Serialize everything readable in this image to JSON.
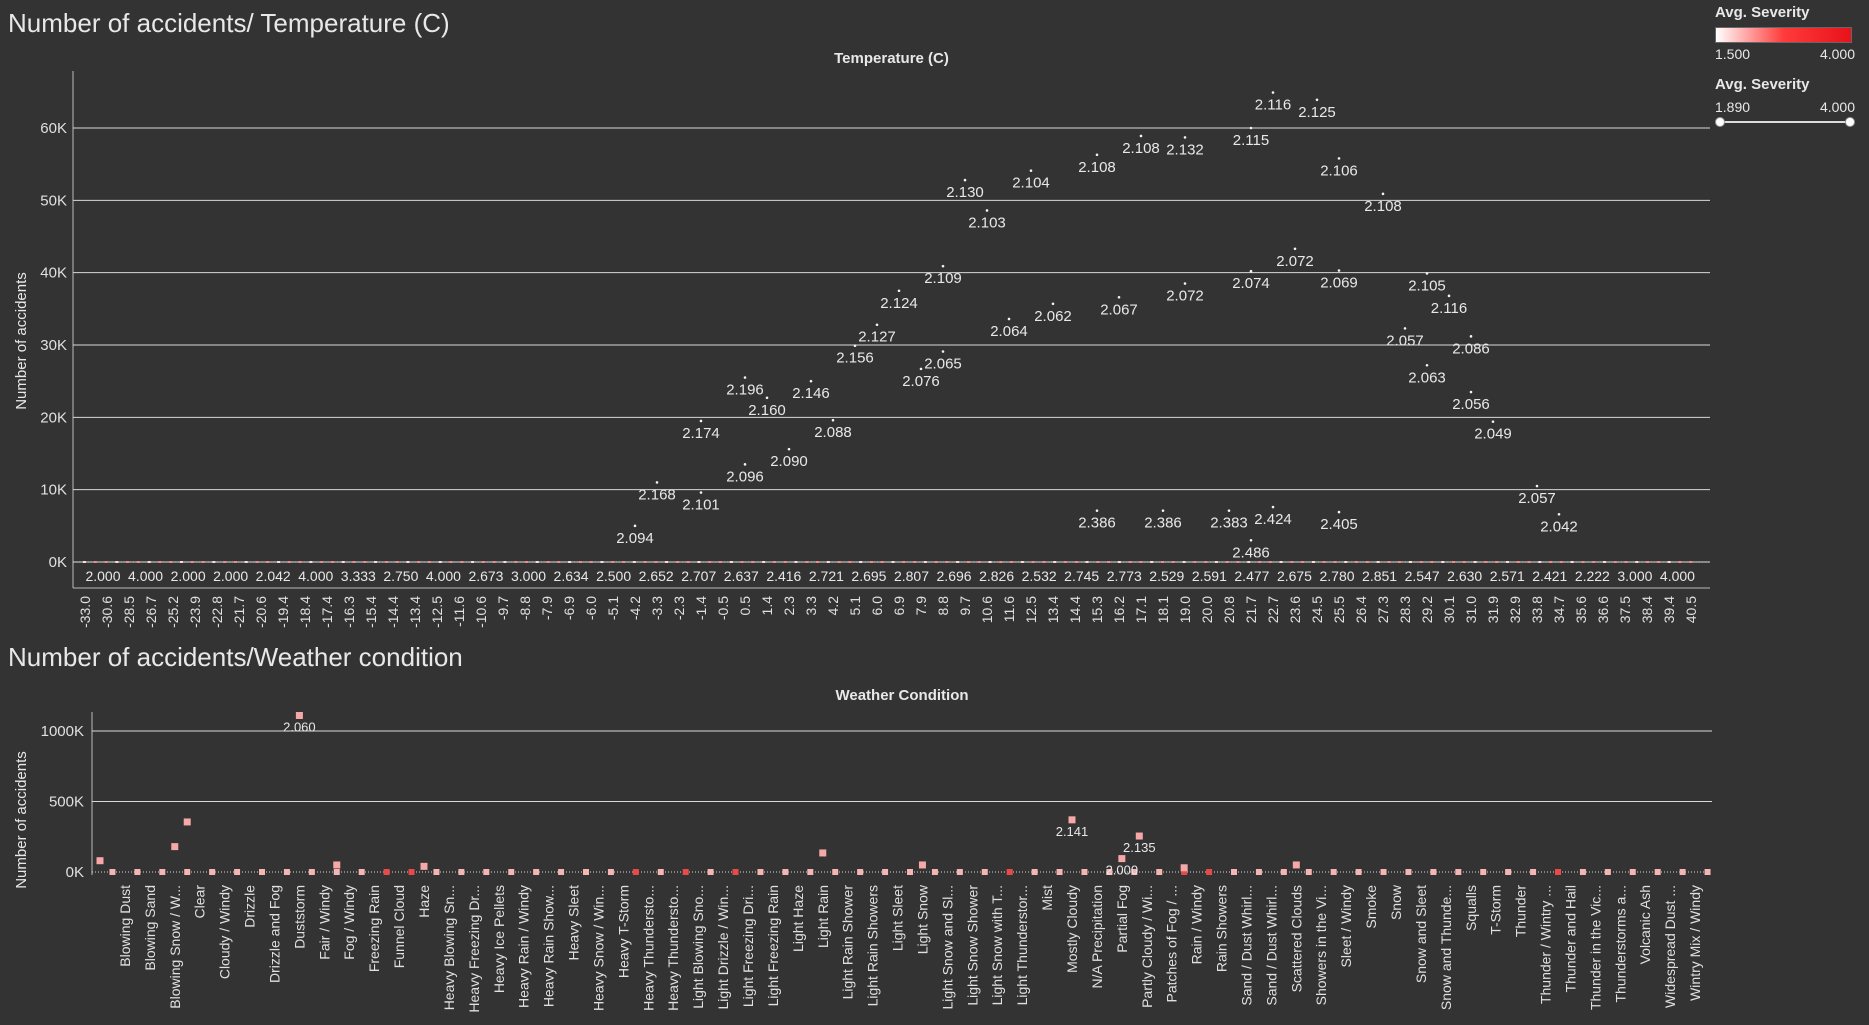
{
  "dashboard": {
    "chart1_title": "Number of accidents/ Temperature (C)",
    "chart2_title": "Number of accidents/Weather condition"
  },
  "legend": {
    "color_title": "Avg. Severity",
    "color_min": "1.500",
    "color_max": "4.000",
    "filter_title": "Avg. Severity",
    "filter_min": "1.890",
    "filter_max": "4.000",
    "colors": {
      "low": "#ffffff",
      "mid": "#ff3b3b",
      "high": "#e8121a"
    }
  },
  "chart_data": [
    {
      "type": "scatter",
      "title": "Temperature (C)",
      "xlabel": "Temperature (C)",
      "ylabel": "Number of accidents",
      "ylim": [
        0,
        65000
      ],
      "y_ticks": [
        "0K",
        "10K",
        "20K",
        "30K",
        "40K",
        "50K",
        "60K"
      ],
      "x_tick_labels": [
        "-33.0",
        "-30.6",
        "-28.5",
        "-26.7",
        "-25.2",
        "-23.9",
        "-22.8",
        "-21.7",
        "-20.6",
        "-19.4",
        "-18.4",
        "-17.4",
        "-16.3",
        "-15.4",
        "-14.4",
        "-13.4",
        "-12.5",
        "-11.6",
        "-10.6",
        "-9.7",
        "-8.8",
        "-7.9",
        "-6.9",
        "-6.0",
        "-5.1",
        "-4.2",
        "-3.3",
        "-2.3",
        "-1.4",
        "-0.5",
        "0.5",
        "1.4",
        "2.3",
        "3.3",
        "4.2",
        "5.1",
        "6.0",
        "6.9",
        "7.9",
        "8.8",
        "9.7",
        "10.6",
        "11.6",
        "12.5",
        "13.4",
        "14.4",
        "15.3",
        "16.2",
        "17.1",
        "18.1",
        "19.0",
        "20.0",
        "20.8",
        "21.7",
        "22.7",
        "23.6",
        "24.5",
        "25.5",
        "26.4",
        "27.3",
        "28.3",
        "29.2",
        "30.1",
        "31.0",
        "31.9",
        "32.9",
        "33.8",
        "34.7",
        "35.6",
        "36.6",
        "37.5",
        "38.4",
        "39.4",
        "40.5"
      ],
      "baseline_labels": [
        "2.000",
        "4.000",
        "2.000",
        "2.000",
        "2.042",
        "4.000",
        "3.333",
        "2.750",
        "4.000",
        "2.673",
        "3.000",
        "2.634",
        "2.500",
        "2.652",
        "2.707",
        "2.637",
        "2.416",
        "2.721",
        "2.695",
        "2.807",
        "2.696",
        "2.826",
        "2.532",
        "2.745",
        "2.773",
        "2.529",
        "2.591",
        "2.477",
        "2.675",
        "2.780",
        "2.851",
        "2.547",
        "2.630",
        "2.571",
        "2.421",
        "2.222",
        "3.000",
        "4.000"
      ],
      "points": [
        {
          "x": -4.2,
          "y": 5000,
          "label": "2.094"
        },
        {
          "x": -3.3,
          "y": 11000,
          "label": "2.168"
        },
        {
          "x": -1.4,
          "y": 9600,
          "label": "2.101"
        },
        {
          "x": -1.4,
          "y": 19500,
          "label": "2.174"
        },
        {
          "x": 0.5,
          "y": 25500,
          "label": "2.196"
        },
        {
          "x": 0.5,
          "y": 13500,
          "label": "2.096"
        },
        {
          "x": 1.4,
          "y": 22700,
          "label": "2.160"
        },
        {
          "x": 2.3,
          "y": 15600,
          "label": "2.090"
        },
        {
          "x": 3.3,
          "y": 25000,
          "label": "2.146"
        },
        {
          "x": 4.2,
          "y": 19600,
          "label": "2.088"
        },
        {
          "x": 5.1,
          "y": 29900,
          "label": "2.156"
        },
        {
          "x": 6.0,
          "y": 32800,
          "label": "2.127"
        },
        {
          "x": 6.9,
          "y": 37500,
          "label": "2.124"
        },
        {
          "x": 7.9,
          "y": 26700,
          "label": "2.076"
        },
        {
          "x": 8.8,
          "y": 40900,
          "label": "2.109"
        },
        {
          "x": 8.8,
          "y": 29100,
          "label": "2.065"
        },
        {
          "x": 9.7,
          "y": 52800,
          "label": "2.130"
        },
        {
          "x": 10.6,
          "y": 48600,
          "label": "2.103"
        },
        {
          "x": 11.6,
          "y": 33600,
          "label": "2.064"
        },
        {
          "x": 12.5,
          "y": 54100,
          "label": "2.104"
        },
        {
          "x": 13.4,
          "y": 35700,
          "label": "2.062"
        },
        {
          "x": 15.3,
          "y": 56300,
          "label": "2.108"
        },
        {
          "x": 16.2,
          "y": 36600,
          "label": "2.067"
        },
        {
          "x": 17.1,
          "y": 58900,
          "label": "2.108"
        },
        {
          "x": 19.0,
          "y": 38500,
          "label": "2.072"
        },
        {
          "x": 19.0,
          "y": 58700,
          "label": "2.132"
        },
        {
          "x": 21.7,
          "y": 40200,
          "label": "2.074"
        },
        {
          "x": 21.7,
          "y": 60000,
          "label": "2.115"
        },
        {
          "x": 22.7,
          "y": 64900,
          "label": "2.116"
        },
        {
          "x": 23.6,
          "y": 43300,
          "label": "2.072"
        },
        {
          "x": 24.5,
          "y": 63900,
          "label": "2.125"
        },
        {
          "x": 25.5,
          "y": 40300,
          "label": "2.069"
        },
        {
          "x": 25.5,
          "y": 55800,
          "label": "2.106"
        },
        {
          "x": 27.3,
          "y": 50900,
          "label": "2.108"
        },
        {
          "x": 28.3,
          "y": 32300,
          "label": "2.057"
        },
        {
          "x": 29.2,
          "y": 39900,
          "label": "2.105"
        },
        {
          "x": 29.2,
          "y": 27200,
          "label": "2.063"
        },
        {
          "x": 30.1,
          "y": 36800,
          "label": "2.116"
        },
        {
          "x": 31.0,
          "y": 31200,
          "label": "2.086"
        },
        {
          "x": 31.0,
          "y": 23500,
          "label": "2.056"
        },
        {
          "x": 31.9,
          "y": 19400,
          "label": "2.049"
        },
        {
          "x": 33.8,
          "y": 10500,
          "label": "2.057"
        },
        {
          "x": 34.7,
          "y": 6600,
          "label": "2.042"
        },
        {
          "x": 15.3,
          "y": 7100,
          "label": "2.386"
        },
        {
          "x": 18.1,
          "y": 7100,
          "label": "2.386"
        },
        {
          "x": 20.8,
          "y": 7100,
          "label": "2.383"
        },
        {
          "x": 21.7,
          "y": 3000,
          "label": "2.486"
        },
        {
          "x": 22.7,
          "y": 7600,
          "label": "2.424"
        },
        {
          "x": 25.5,
          "y": 6900,
          "label": "2.405"
        }
      ]
    },
    {
      "type": "scatter",
      "title": "Weather Condition",
      "xlabel": "Weather Condition",
      "ylabel": "Number of accidents",
      "ylim": [
        0,
        1200000
      ],
      "y_ticks": [
        "0K",
        "500K",
        "1000K"
      ],
      "categories": [
        "Blowing Dust",
        "Blowing Sand",
        "Blowing Snow / W...",
        "Clear",
        "Cloudy / Windy",
        "Drizzle",
        "Drizzle and Fog",
        "Duststorm",
        "Fair / Windy",
        "Fog / Windy",
        "Freezing Rain",
        "Funnel Cloud",
        "Haze",
        "Heavy Blowing Sn...",
        "Heavy Freezing Dr...",
        "Heavy Ice Pellets",
        "Heavy Rain / Windy",
        "Heavy Rain Show...",
        "Heavy Sleet",
        "Heavy Snow / Win...",
        "Heavy T-Storm",
        "Heavy Thundersto...",
        "Heavy Thundersto...",
        "Light Blowing Sno...",
        "Light Drizzle / Win...",
        "Light Freezing Dri...",
        "Light Freezing Rain",
        "Light Haze",
        "Light Rain",
        "Light Rain Shower",
        "Light Rain Showers",
        "Light Sleet",
        "Light Snow",
        "Light Snow and Sl...",
        "Light Snow Shower",
        "Light Snow with T...",
        "Light Thunderstor...",
        "Mist",
        "Mostly Cloudy",
        "N/A Precipitation",
        "Partial Fog",
        "Partly Cloudy / Wi...",
        "Patches of Fog / ...",
        "Rain / Windy",
        "Rain Showers",
        "Sand / Dust Whirl...",
        "Sand / Dust Whirl...",
        "Scattered Clouds",
        "Showers in the Vi...",
        "Sleet / Windy",
        "Smoke",
        "Snow",
        "Snow and Sleet",
        "Snow and Thunde...",
        "Squalls",
        "T-Storm",
        "Thunder",
        "Thunder / Wintry ...",
        "Thunder and Hail",
        "Thunder in the Vic...",
        "Thunderstorms a...",
        "Volcanic Ash",
        "Widespread Dust ...",
        "Wintry Mix / Windy"
      ],
      "points": [
        {
          "x": -1,
          "y": 80000
        },
        {
          "x": 2,
          "y": 180000
        },
        {
          "x": 2.5,
          "y": 355000
        },
        {
          "x": 7,
          "y": 1110000,
          "label": "2.060"
        },
        {
          "x": 8.5,
          "y": 50000
        },
        {
          "x": 12,
          "y": 40000
        },
        {
          "x": 28,
          "y": 135000
        },
        {
          "x": 32,
          "y": 50000
        },
        {
          "x": 38,
          "y": 370000,
          "label": "2.141"
        },
        {
          "x": 40,
          "y": 95000,
          "label": "2.000"
        },
        {
          "x": 40.7,
          "y": 255000,
          "label": "2.135"
        },
        {
          "x": 42.5,
          "y": 30000
        },
        {
          "x": 47,
          "y": 50000
        }
      ]
    }
  ]
}
